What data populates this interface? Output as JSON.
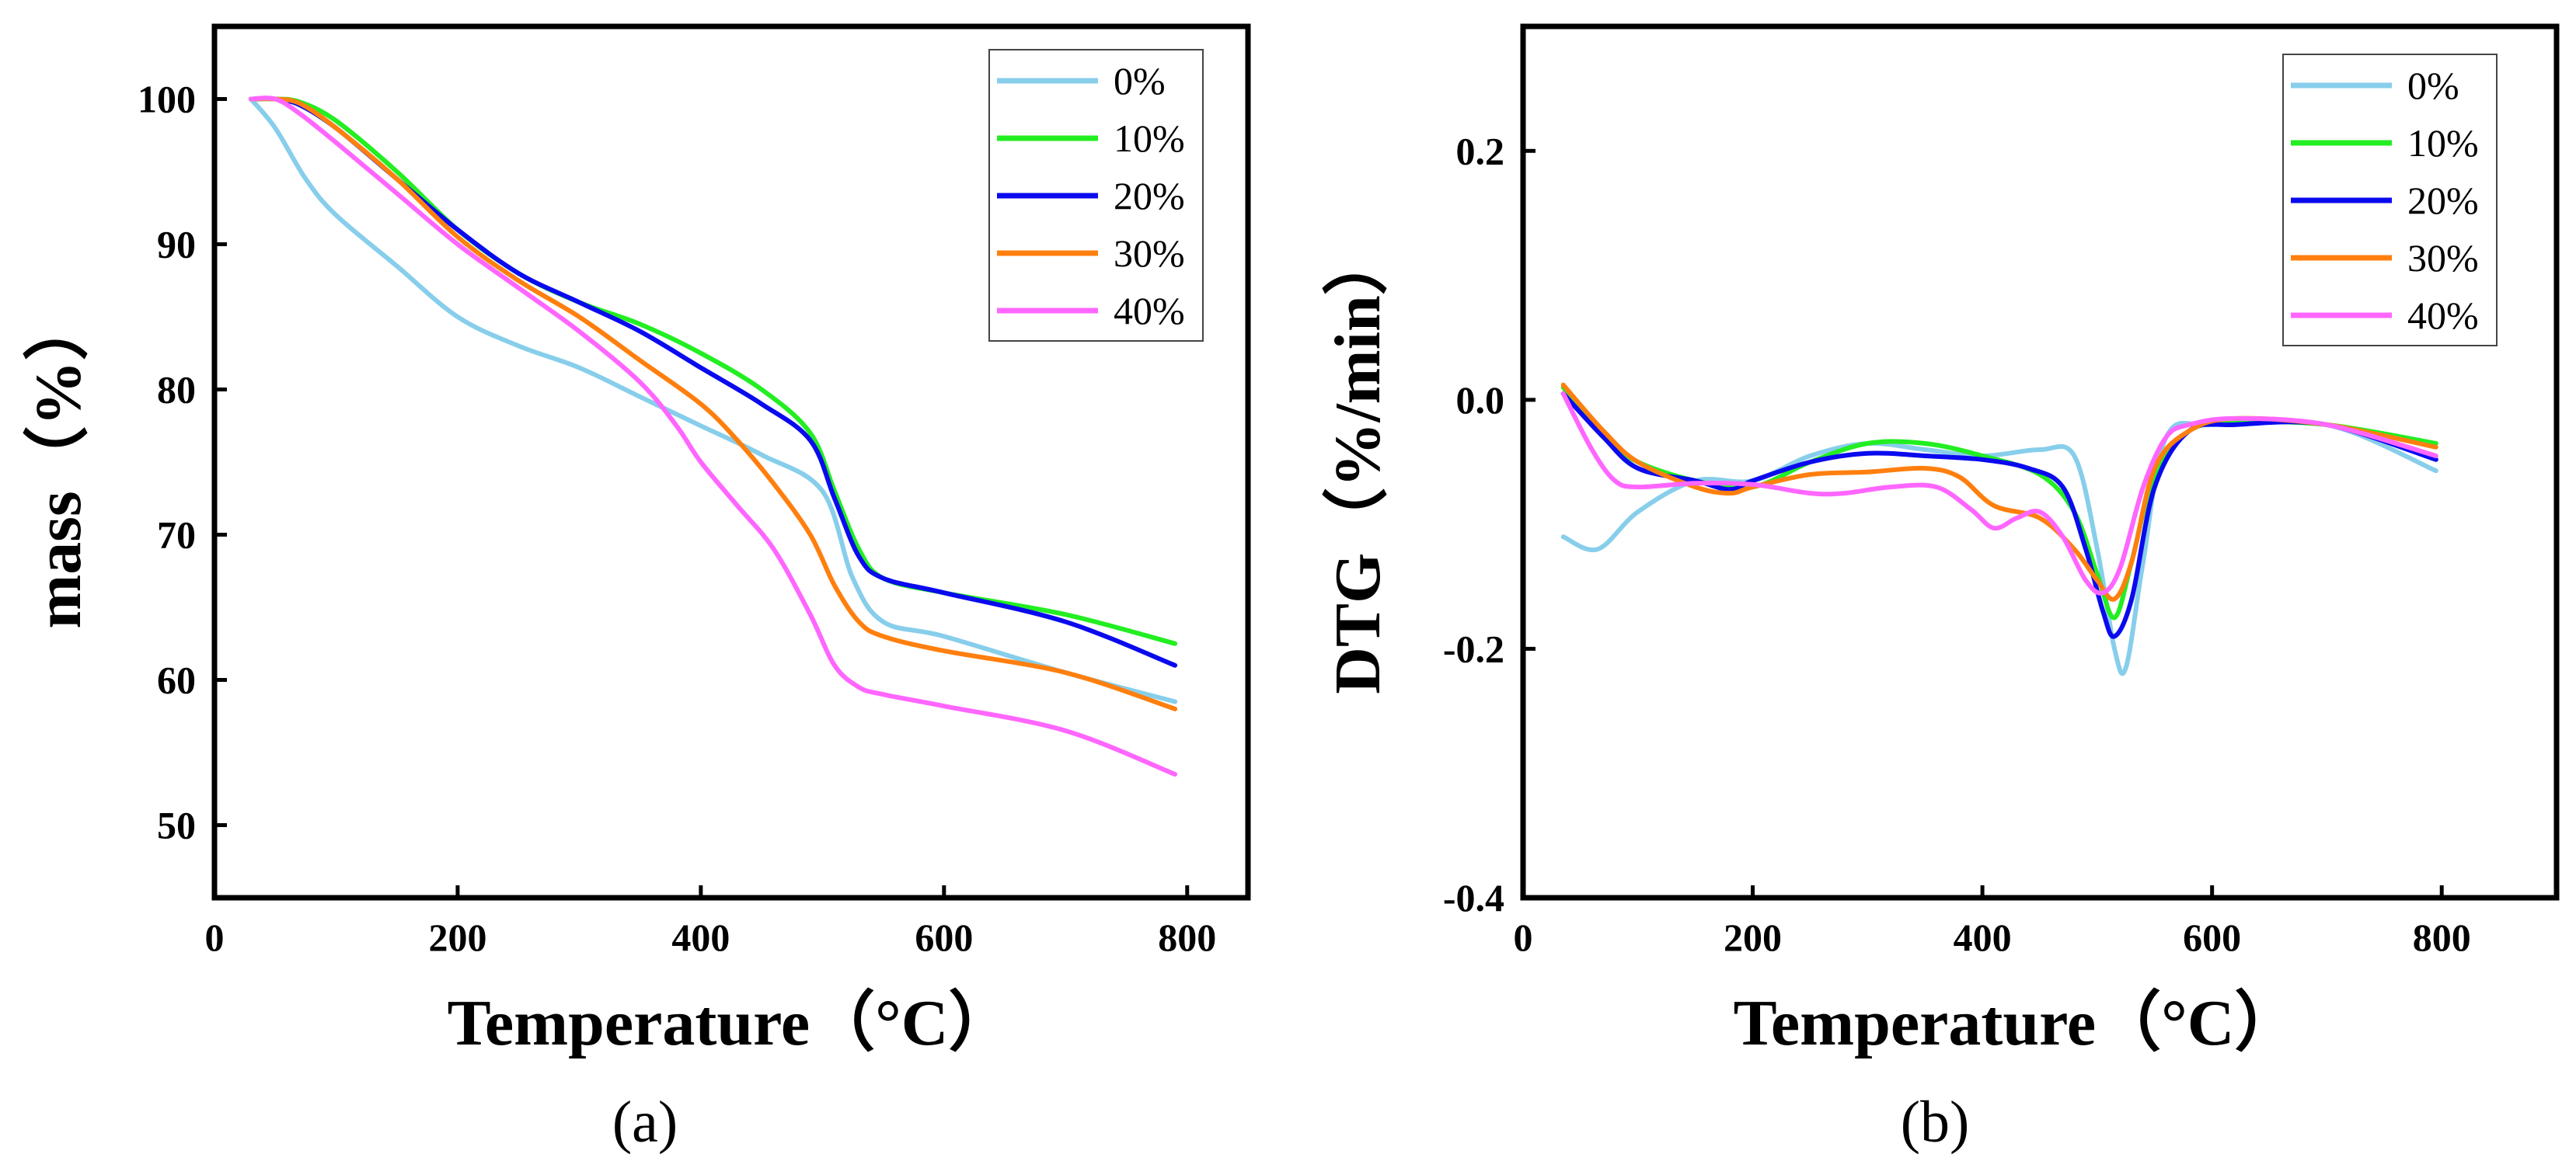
{
  "chart_data": [
    {
      "type": "line",
      "panel_label": "(a)",
      "xlabel": "Temperature（°C）",
      "ylabel": "mass（%）",
      "xlim": [
        0,
        850
      ],
      "ylim": [
        45,
        105
      ],
      "xticks": [
        0,
        200,
        400,
        600,
        800
      ],
      "yticks": [
        50,
        60,
        70,
        80,
        90,
        100
      ],
      "legend_position": "top-right",
      "grid": false,
      "series": [
        {
          "name": "0%",
          "color": "#87CEEB",
          "x": [
            30,
            50,
            75,
            100,
            150,
            200,
            250,
            300,
            350,
            400,
            450,
            500,
            525,
            550,
            600,
            700,
            790
          ],
          "y": [
            100,
            98,
            94.5,
            92,
            88.5,
            85,
            83,
            81.5,
            79.5,
            77.5,
            75.5,
            73,
            67,
            64,
            63,
            60.5,
            58.5
          ]
        },
        {
          "name": "10%",
          "color": "#22EE22",
          "x": [
            30,
            50,
            70,
            100,
            150,
            200,
            250,
            300,
            350,
            400,
            450,
            490,
            510,
            530,
            550,
            600,
            700,
            790
          ],
          "y": [
            100,
            100,
            99.8,
            98.5,
            95,
            91,
            88,
            86,
            84.5,
            82.5,
            80,
            77,
            73,
            69,
            67,
            66,
            64.5,
            62.5
          ]
        },
        {
          "name": "20%",
          "color": "#0A0AEE",
          "x": [
            30,
            50,
            70,
            100,
            150,
            200,
            250,
            300,
            350,
            400,
            450,
            490,
            510,
            530,
            550,
            600,
            700,
            790
          ],
          "y": [
            100,
            100,
            99.6,
            98,
            94.5,
            91,
            88,
            86,
            84,
            81.5,
            79,
            76.5,
            72.5,
            68.5,
            67,
            66,
            64,
            61
          ]
        },
        {
          "name": "30%",
          "color": "#FF7F0E",
          "x": [
            30,
            50,
            70,
            100,
            150,
            200,
            250,
            300,
            350,
            400,
            430,
            460,
            490,
            510,
            530,
            550,
            600,
            700,
            790
          ],
          "y": [
            100,
            100,
            99.7,
            98,
            94.5,
            90.5,
            87.5,
            85,
            82,
            79,
            76.5,
            73.5,
            70,
            66.5,
            64,
            63,
            62,
            60.5,
            58
          ]
        },
        {
          "name": "40%",
          "color": "#FF66FF",
          "x": [
            30,
            50,
            70,
            100,
            150,
            200,
            250,
            300,
            350,
            380,
            400,
            430,
            460,
            490,
            510,
            530,
            550,
            600,
            700,
            790
          ],
          "y": [
            100,
            100,
            99,
            97,
            93.5,
            90,
            87,
            84,
            80.5,
            77.5,
            75,
            72,
            69,
            64.5,
            61,
            59.5,
            59,
            58.2,
            56.5,
            53.5
          ]
        }
      ]
    },
    {
      "type": "line",
      "panel_label": "(b)",
      "xlabel": "Temperature（°C）",
      "ylabel": "DTG（%/min）",
      "xlim": [
        0,
        900
      ],
      "ylim": [
        -0.4,
        0.3
      ],
      "xticks": [
        0,
        200,
        400,
        600,
        800
      ],
      "yticks": [
        -0.4,
        -0.2,
        0.0,
        0.2
      ],
      "ytick_labels": [
        "-0.4",
        "-0.2",
        "0.0",
        "0.2"
      ],
      "legend_position": "top-right",
      "grid": false,
      "series": [
        {
          "name": "0%",
          "color": "#87CEEB",
          "x": [
            35,
            65,
            100,
            150,
            200,
            250,
            300,
            350,
            400,
            450,
            480,
            500,
            515,
            525,
            540,
            560,
            600,
            700,
            795
          ],
          "y": [
            -0.11,
            -0.12,
            -0.09,
            -0.065,
            -0.065,
            -0.045,
            -0.035,
            -0.04,
            -0.045,
            -0.04,
            -0.045,
            -0.12,
            -0.2,
            -0.215,
            -0.13,
            -0.03,
            -0.02,
            -0.02,
            -0.057
          ]
        },
        {
          "name": "10%",
          "color": "#22EE22",
          "x": [
            35,
            70,
            100,
            150,
            200,
            250,
            300,
            350,
            400,
            450,
            480,
            500,
            515,
            530,
            550,
            580,
            620,
            700,
            795
          ],
          "y": [
            0.01,
            -0.03,
            -0.05,
            -0.065,
            -0.07,
            -0.05,
            -0.035,
            -0.035,
            -0.045,
            -0.06,
            -0.09,
            -0.14,
            -0.175,
            -0.13,
            -0.06,
            -0.025,
            -0.018,
            -0.02,
            -0.035
          ]
        },
        {
          "name": "20%",
          "color": "#0A0AEE",
          "x": [
            35,
            70,
            100,
            150,
            180,
            200,
            250,
            300,
            350,
            400,
            440,
            470,
            490,
            505,
            515,
            530,
            550,
            580,
            620,
            700,
            795
          ],
          "y": [
            0.005,
            -0.03,
            -0.055,
            -0.065,
            -0.072,
            -0.065,
            -0.05,
            -0.043,
            -0.045,
            -0.048,
            -0.055,
            -0.07,
            -0.12,
            -0.17,
            -0.19,
            -0.16,
            -0.07,
            -0.025,
            -0.02,
            -0.02,
            -0.048
          ]
        },
        {
          "name": "30%",
          "color": "#FF7F0E",
          "x": [
            35,
            70,
            100,
            150,
            180,
            200,
            250,
            300,
            350,
            380,
            410,
            450,
            480,
            500,
            515,
            530,
            550,
            580,
            620,
            700,
            795
          ],
          "y": [
            0.012,
            -0.025,
            -0.05,
            -0.07,
            -0.075,
            -0.07,
            -0.06,
            -0.058,
            -0.055,
            -0.062,
            -0.085,
            -0.095,
            -0.12,
            -0.145,
            -0.16,
            -0.13,
            -0.055,
            -0.025,
            -0.015,
            -0.02,
            -0.038
          ]
        },
        {
          "name": "40%",
          "color": "#FF66FF",
          "x": [
            35,
            60,
            80,
            100,
            150,
            200,
            250,
            280,
            320,
            360,
            390,
            410,
            430,
            450,
            470,
            490,
            505,
            520,
            540,
            560,
            580,
            620,
            700,
            795
          ],
          "y": [
            0.005,
            -0.04,
            -0.065,
            -0.07,
            -0.067,
            -0.068,
            -0.075,
            -0.075,
            -0.07,
            -0.07,
            -0.088,
            -0.103,
            -0.095,
            -0.09,
            -0.11,
            -0.145,
            -0.155,
            -0.135,
            -0.07,
            -0.03,
            -0.02,
            -0.015,
            -0.02,
            -0.045
          ]
        }
      ]
    }
  ]
}
